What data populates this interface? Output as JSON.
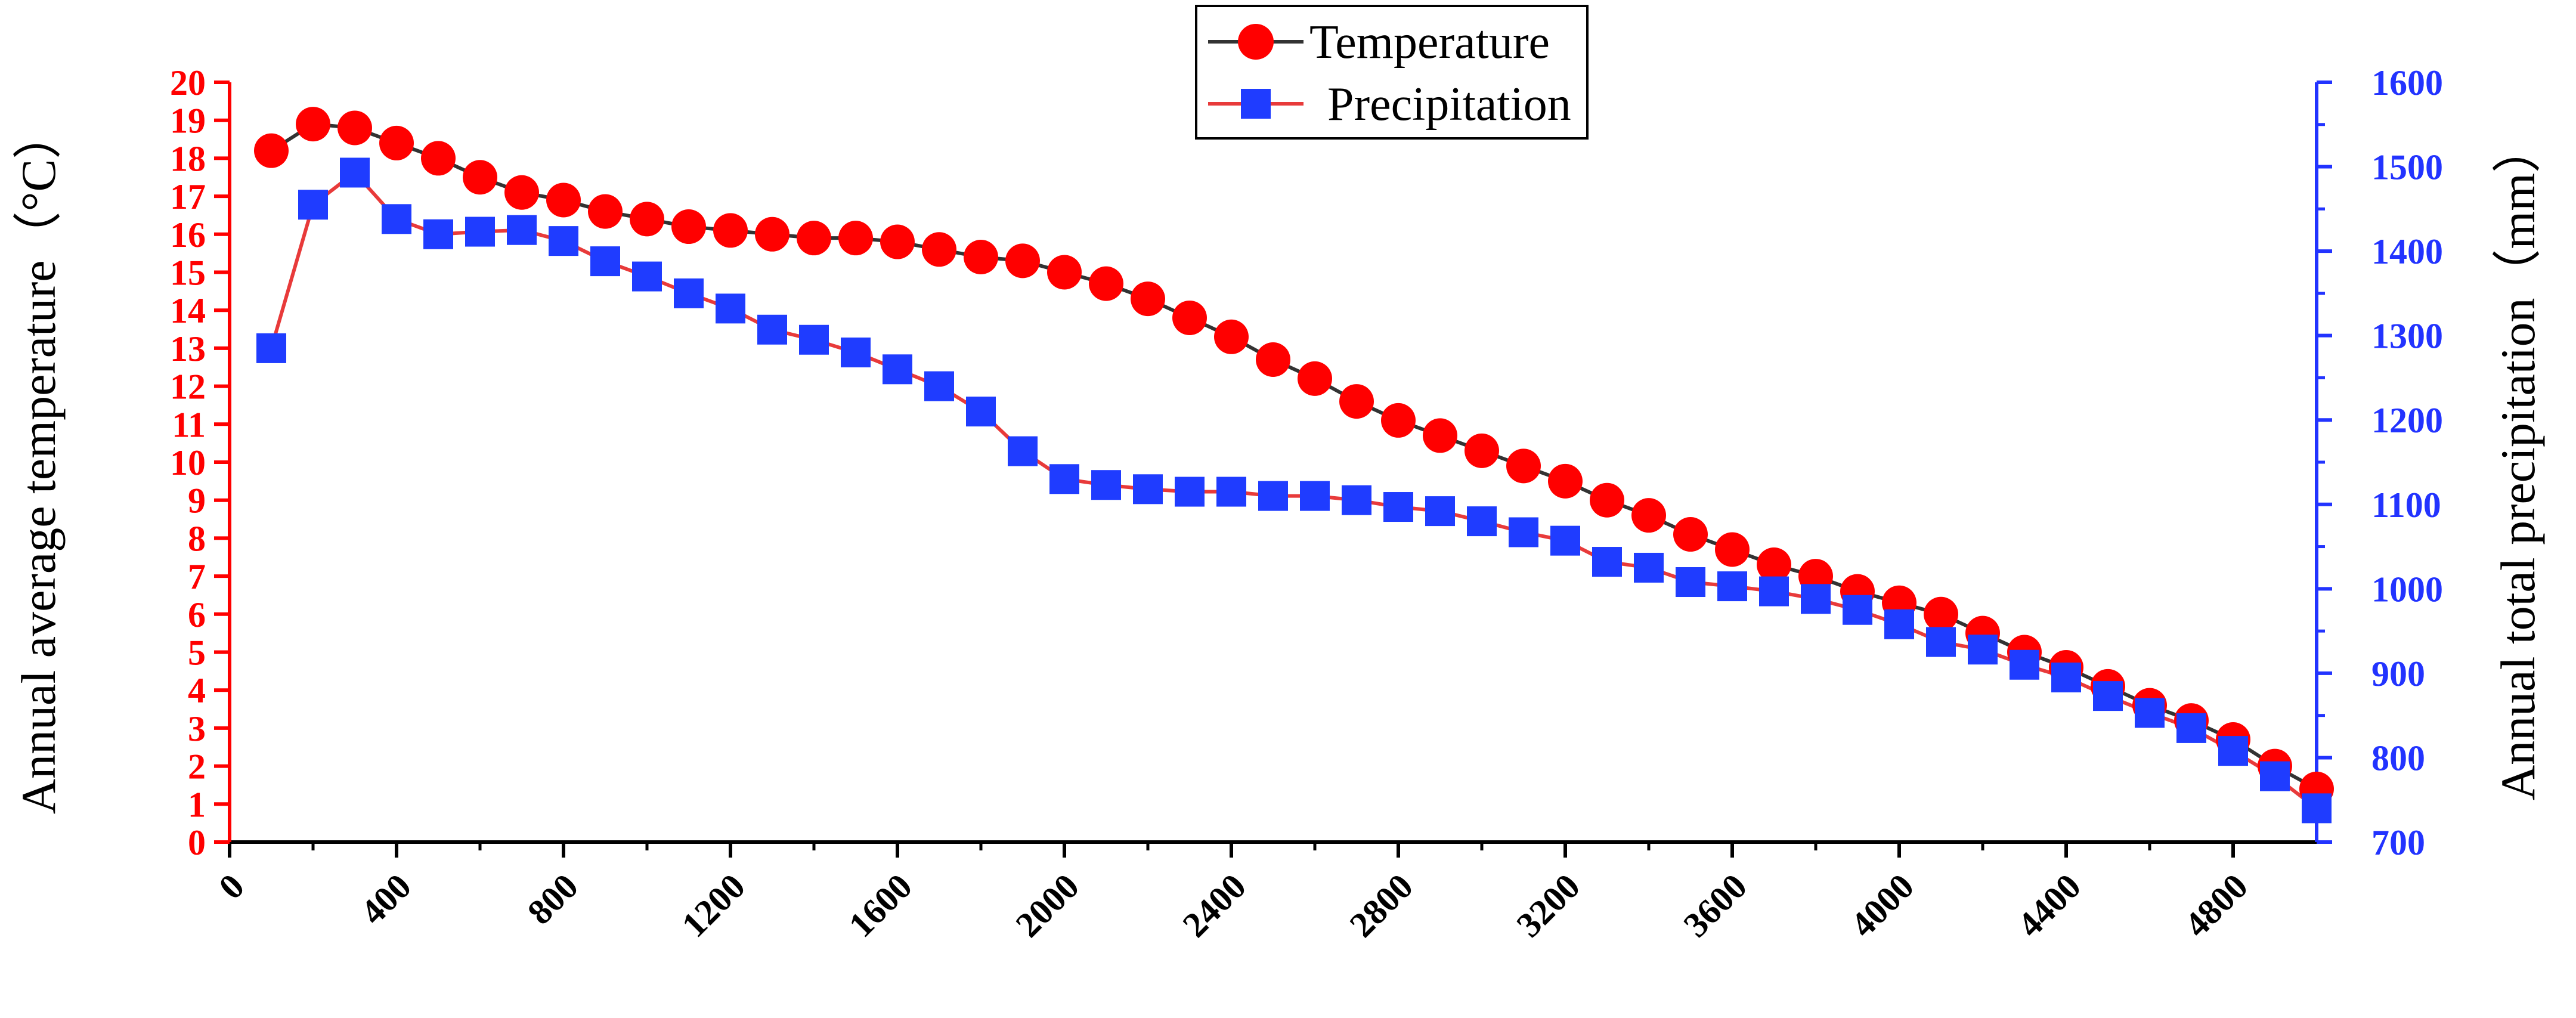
{
  "colors": {
    "temperature_marker": "#ff0000",
    "temperature_line": "#333333",
    "precipitation_marker": "#1f3cff",
    "precipitation_line": "#e83a3a",
    "left_axis": "#ff0000",
    "right_axis": "#2233ff",
    "bottom_axis": "#000000"
  },
  "chart_data": {
    "type": "line",
    "x": [
      100,
      200,
      300,
      400,
      500,
      600,
      700,
      800,
      900,
      1000,
      1100,
      1200,
      1300,
      1400,
      1500,
      1600,
      1700,
      1800,
      1900,
      2000,
      2100,
      2200,
      2300,
      2400,
      2500,
      2600,
      2700,
      2800,
      2900,
      3000,
      3100,
      3200,
      3300,
      3400,
      3500,
      3600,
      3700,
      3800,
      3900,
      4000,
      4100,
      4200,
      4300,
      4400,
      4500,
      4600,
      4700,
      4800,
      4900,
      5000
    ],
    "series": [
      {
        "name": "Temperature",
        "axis": "left",
        "marker": "circle",
        "values": [
          18.2,
          18.9,
          18.8,
          18.4,
          18.0,
          17.5,
          17.1,
          16.9,
          16.6,
          16.4,
          16.2,
          16.1,
          16.0,
          15.9,
          15.9,
          15.8,
          15.6,
          15.4,
          15.3,
          15.0,
          14.7,
          14.3,
          13.8,
          13.3,
          12.7,
          12.2,
          11.6,
          11.1,
          10.7,
          10.3,
          9.9,
          9.5,
          9.0,
          8.6,
          8.1,
          7.7,
          7.3,
          7.0,
          6.6,
          6.3,
          6.0,
          5.5,
          5.0,
          4.6,
          4.1,
          3.6,
          3.2,
          2.7,
          2.0,
          1.4
        ]
      },
      {
        "name": "Precipitation",
        "axis": "right",
        "marker": "square",
        "values": [
          1285,
          1455,
          1493,
          1438,
          1420,
          1423,
          1425,
          1412,
          1388,
          1370,
          1350,
          1332,
          1307,
          1295,
          1280,
          1260,
          1240,
          1210,
          1163,
          1130,
          1123,
          1118,
          1115,
          1115,
          1110,
          1110,
          1105,
          1097,
          1092,
          1080,
          1067,
          1057,
          1032,
          1025,
          1008,
          1003,
          997,
          988,
          975,
          958,
          937,
          928,
          910,
          895,
          873,
          853,
          835,
          808,
          778,
          740
        ]
      }
    ],
    "xlim": [
      0,
      5000
    ],
    "xticks": [
      "0",
      "400",
      "800",
      "1200",
      "1600",
      "2000",
      "2400",
      "2800",
      "3200",
      "3600",
      "4000",
      "4400",
      "4800"
    ],
    "left_axis": {
      "label": "Annual average temperature（°C）",
      "ylim": [
        0,
        20
      ],
      "ticks": [
        "0",
        "1",
        "2",
        "3",
        "4",
        "5",
        "6",
        "7",
        "8",
        "9",
        "10",
        "11",
        "12",
        "13",
        "14",
        "15",
        "16",
        "17",
        "18",
        "19",
        "20"
      ]
    },
    "right_axis": {
      "label": "Annual total precipitation（mm）",
      "ylim": [
        700,
        1600
      ],
      "ticks": [
        "700",
        "800",
        "900",
        "1000",
        "1100",
        "1200",
        "1300",
        "1400",
        "1500",
        "1600"
      ]
    },
    "legend": {
      "position": "top-center",
      "entries": [
        "Temperature",
        "Precipitation"
      ]
    },
    "grid": false
  }
}
